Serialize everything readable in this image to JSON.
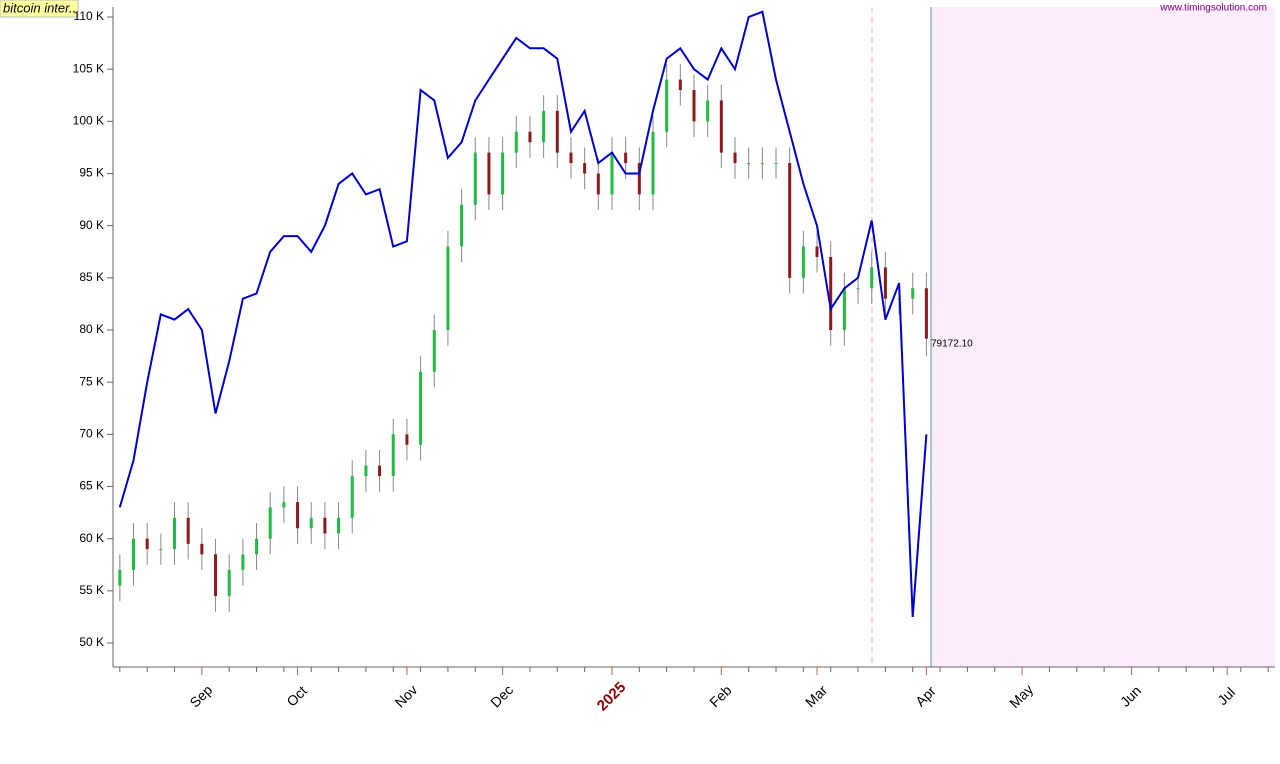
{
  "chart_data": {
    "type": "candlestick",
    "title": "bitcoin inter..",
    "source": "www.timingsolution.com",
    "annotation": "79172.10",
    "categories": [
      null,
      null,
      null,
      null,
      null,
      null,
      "Sep",
      null,
      null,
      null,
      null,
      null,
      null,
      "Oct",
      null,
      null,
      null,
      null,
      null,
      null,
      null,
      "Nov",
      null,
      null,
      null,
      null,
      null,
      null,
      "Dec",
      null,
      null,
      null,
      null,
      null,
      null,
      null,
      "2025",
      null,
      null,
      null,
      null,
      null,
      null,
      null,
      "Feb",
      null,
      null,
      null,
      null,
      null,
      null,
      "Mar",
      null,
      null,
      null,
      null,
      null,
      null,
      null,
      "Apr",
      null,
      null,
      null,
      null,
      null,
      null,
      "May",
      null,
      null,
      null,
      null,
      null,
      null,
      null,
      "Jun",
      null,
      null,
      null,
      null,
      null,
      null,
      "Jul",
      null,
      null,
      null
    ],
    "open": [
      55500,
      57000,
      60000,
      59000,
      59000,
      62000,
      59500,
      58500,
      54500,
      57000,
      58500,
      60000,
      63000,
      63500,
      61000,
      62000,
      60500,
      62000,
      66000,
      67000,
      66000,
      70000,
      69000,
      76000,
      80000,
      88000,
      92000,
      97000,
      93000,
      97000,
      99000,
      98000,
      101000,
      97000,
      96000,
      95000,
      93000,
      97000,
      96000,
      93000,
      99000,
      104000,
      103000,
      100000,
      102000,
      97000,
      96000,
      96000,
      96000,
      96000,
      85000,
      88000,
      87000,
      80000,
      84000,
      84000,
      86000,
      83000,
      83000,
      84000,
      null,
      null,
      null,
      null,
      null,
      null,
      null,
      null,
      null,
      null,
      null,
      null,
      null,
      null,
      null,
      null,
      null,
      null,
      null,
      null,
      null,
      null,
      null,
      null,
      null
    ],
    "high": [
      58500,
      61500,
      61500,
      60500,
      63500,
      63500,
      61000,
      60000,
      58500,
      60000,
      61500,
      64500,
      65000,
      65000,
      63500,
      63500,
      63500,
      67500,
      68500,
      68500,
      71500,
      71500,
      77500,
      81500,
      89500,
      93500,
      98500,
      98500,
      98500,
      100500,
      100500,
      102500,
      102500,
      98500,
      97500,
      96500,
      98500,
      98500,
      97500,
      100500,
      105500,
      105500,
      104500,
      103500,
      103500,
      98500,
      97500,
      97500,
      97500,
      97500,
      89500,
      89500,
      88500,
      85500,
      85500,
      87500,
      87500,
      84500,
      85500,
      85500,
      null,
      null,
      null,
      null,
      null,
      null,
      null,
      null,
      null,
      null,
      null,
      null,
      null,
      null,
      null,
      null,
      null,
      null,
      null,
      null,
      null,
      null,
      null,
      null,
      null
    ],
    "low": [
      54000,
      55500,
      57500,
      57500,
      57500,
      58000,
      57000,
      53000,
      53000,
      55500,
      57000,
      58500,
      61500,
      59500,
      59500,
      59000,
      59000,
      60500,
      64500,
      64500,
      64500,
      67500,
      67500,
      74500,
      78500,
      86500,
      90500,
      91500,
      91500,
      95500,
      96500,
      96500,
      95500,
      94500,
      93500,
      91500,
      91500,
      94500,
      91500,
      91500,
      97500,
      101500,
      98500,
      98500,
      95500,
      94500,
      94500,
      94500,
      94500,
      83500,
      83500,
      85500,
      78500,
      78500,
      82500,
      82500,
      81500,
      81500,
      81500,
      77500,
      null,
      null,
      null,
      null,
      null,
      null,
      null,
      null,
      null,
      null,
      null,
      null,
      null,
      null,
      null,
      null,
      null,
      null,
      null,
      null,
      null,
      null,
      null,
      null,
      null
    ],
    "close": [
      57000,
      60000,
      59000,
      59000,
      62000,
      59500,
      58500,
      54500,
      57000,
      58500,
      60000,
      63000,
      63500,
      61000,
      62000,
      60500,
      62000,
      66000,
      67000,
      66000,
      70000,
      69000,
      76000,
      80000,
      88000,
      92000,
      97000,
      93000,
      97000,
      99000,
      98000,
      101000,
      97000,
      96000,
      95000,
      93000,
      97000,
      96000,
      93000,
      99000,
      104000,
      103000,
      100000,
      102000,
      97000,
      96000,
      96000,
      96000,
      96000,
      85000,
      88000,
      87000,
      80000,
      84000,
      84000,
      86000,
      83000,
      83000,
      84000,
      79172.1,
      null,
      null,
      null,
      null,
      null,
      null,
      null,
      null,
      null,
      null,
      null,
      null,
      null,
      null,
      null,
      null,
      null,
      null,
      null,
      null,
      null,
      null,
      null,
      null,
      null
    ],
    "up_color": "#22bb44",
    "down_color": "#8b1a1a",
    "line": {
      "color": "#0000cc",
      "values": [
        63000,
        67500,
        75000,
        81500,
        81000,
        82000,
        80000,
        72000,
        77000,
        83000,
        83500,
        87500,
        89000,
        89000,
        87500,
        90000,
        94000,
        95000,
        93000,
        93500,
        88000,
        88500,
        103000,
        102000,
        96500,
        98000,
        102000,
        104000,
        106000,
        108000,
        107000,
        107000,
        106000,
        99000,
        101000,
        96000,
        97000,
        95000,
        95000,
        101000,
        106000,
        107000,
        105000,
        104000,
        107000,
        105000,
        110000,
        110500,
        104000,
        99000,
        94000,
        90000,
        82000,
        84000,
        85000,
        90500,
        81000,
        84500,
        52500,
        70000,
        null,
        null,
        null,
        null,
        null,
        null,
        null,
        null,
        null,
        null,
        null,
        null,
        null,
        null,
        null,
        null,
        null,
        null,
        null,
        null,
        null,
        null,
        null,
        null,
        null
      ]
    },
    "ylim": [
      47700,
      110960
    ],
    "yticks": [
      {
        "value": 50000,
        "label": "50 K"
      },
      {
        "value": 55000,
        "label": "55 K"
      },
      {
        "value": 60000,
        "label": "60 K"
      },
      {
        "value": 65000,
        "label": "65 K"
      },
      {
        "value": 70000,
        "label": "70 K"
      },
      {
        "value": 75000,
        "label": "75 K"
      },
      {
        "value": 80000,
        "label": "80 K"
      },
      {
        "value": 85000,
        "label": "85 K"
      },
      {
        "value": 90000,
        "label": "90 K"
      },
      {
        "value": 95000,
        "label": "95 K"
      },
      {
        "value": 100000,
        "label": "100 K"
      },
      {
        "value": 105000,
        "label": "105 K"
      },
      {
        "value": 110000,
        "label": "110 K"
      }
    ]
  }
}
